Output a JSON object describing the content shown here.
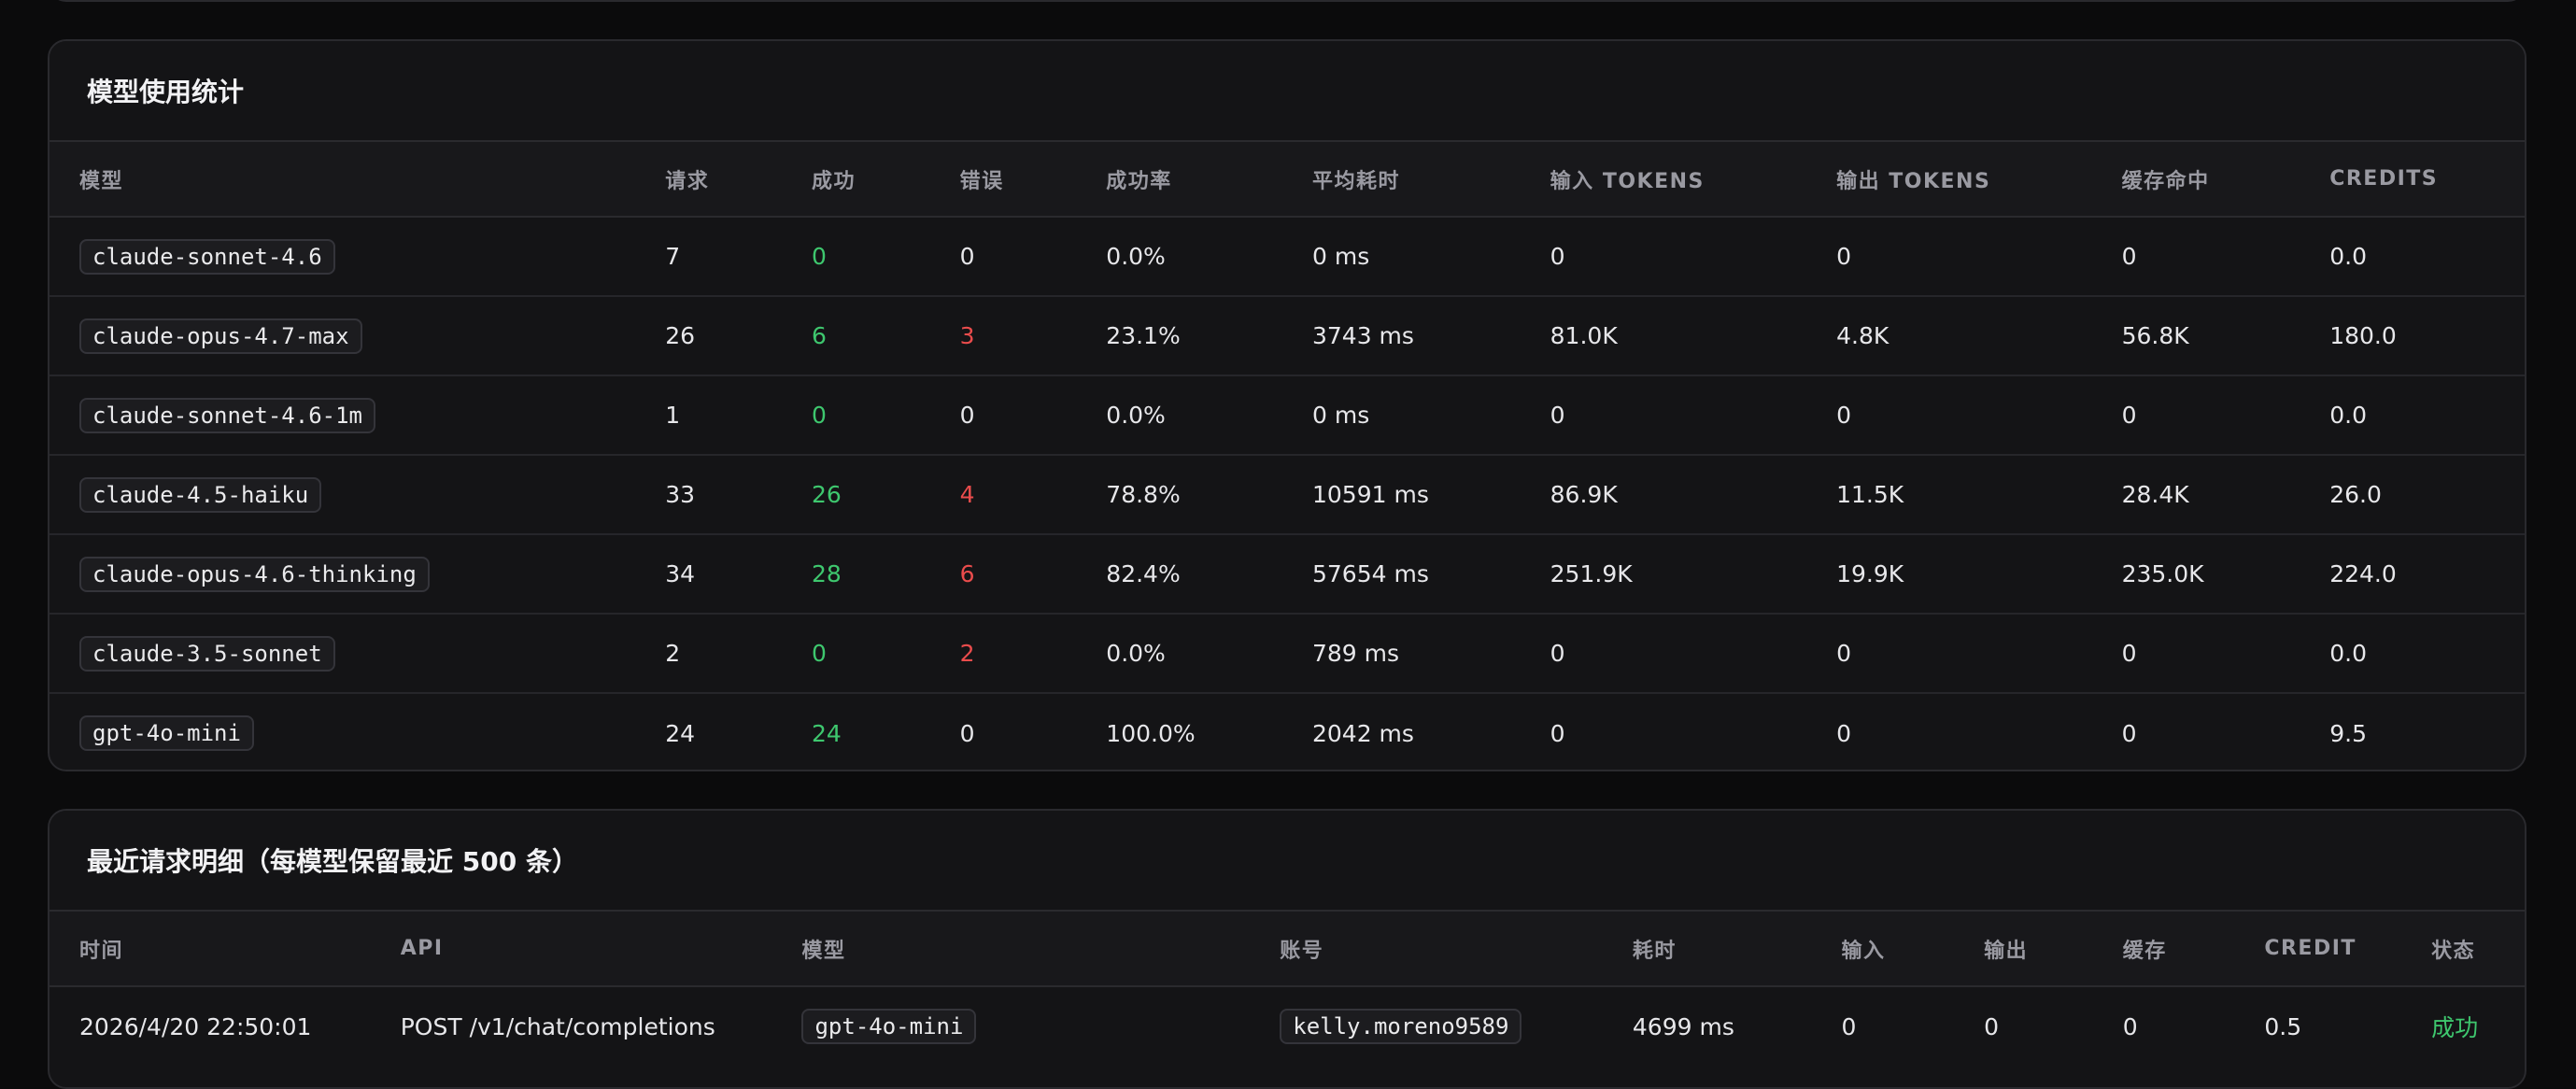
{
  "model_stats": {
    "title": "模型使用统计",
    "columns": [
      "模型",
      "请求",
      "成功",
      "错误",
      "成功率",
      "平均耗时",
      "输入 TOKENS",
      "输出 TOKENS",
      "缓存命中",
      "CREDITS"
    ],
    "rows": [
      {
        "model": "claude-sonnet-4.6",
        "requests": "7",
        "success": "0",
        "errors": "0",
        "success_rate": "0.0%",
        "avg_latency": "0 ms",
        "input_tokens": "0",
        "output_tokens": "0",
        "cache_hits": "0",
        "credits": "0.0"
      },
      {
        "model": "claude-opus-4.7-max",
        "requests": "26",
        "success": "6",
        "errors": "3",
        "success_rate": "23.1%",
        "avg_latency": "3743 ms",
        "input_tokens": "81.0K",
        "output_tokens": "4.8K",
        "cache_hits": "56.8K",
        "credits": "180.0"
      },
      {
        "model": "claude-sonnet-4.6-1m",
        "requests": "1",
        "success": "0",
        "errors": "0",
        "success_rate": "0.0%",
        "avg_latency": "0 ms",
        "input_tokens": "0",
        "output_tokens": "0",
        "cache_hits": "0",
        "credits": "0.0"
      },
      {
        "model": "claude-4.5-haiku",
        "requests": "33",
        "success": "26",
        "errors": "4",
        "success_rate": "78.8%",
        "avg_latency": "10591 ms",
        "input_tokens": "86.9K",
        "output_tokens": "11.5K",
        "cache_hits": "28.4K",
        "credits": "26.0"
      },
      {
        "model": "claude-opus-4.6-thinking",
        "requests": "34",
        "success": "28",
        "errors": "6",
        "success_rate": "82.4%",
        "avg_latency": "57654 ms",
        "input_tokens": "251.9K",
        "output_tokens": "19.9K",
        "cache_hits": "235.0K",
        "credits": "224.0"
      },
      {
        "model": "claude-3.5-sonnet",
        "requests": "2",
        "success": "0",
        "errors": "2",
        "success_rate": "0.0%",
        "avg_latency": "789 ms",
        "input_tokens": "0",
        "output_tokens": "0",
        "cache_hits": "0",
        "credits": "0.0"
      },
      {
        "model": "gpt-4o-mini",
        "requests": "24",
        "success": "24",
        "errors": "0",
        "success_rate": "100.0%",
        "avg_latency": "2042 ms",
        "input_tokens": "0",
        "output_tokens": "0",
        "cache_hits": "0",
        "credits": "9.5"
      }
    ]
  },
  "recent_requests": {
    "title": "最近请求明细（每模型保留最近 500 条）",
    "columns": [
      "时间",
      "API",
      "模型",
      "账号",
      "耗时",
      "输入",
      "输出",
      "缓存",
      "CREDIT",
      "状态"
    ],
    "rows": [
      {
        "time": "2026/4/20 22:50:01",
        "api": "POST /v1/chat/completions",
        "model": "gpt-4o-mini",
        "account": "kelly.moreno9589",
        "latency": "4699 ms",
        "input": "0",
        "output": "0",
        "cache": "0",
        "credit": "0.5",
        "status": "成功"
      }
    ]
  },
  "colors": {
    "success": "#3ec76e",
    "error": "#ea4c4c",
    "background": "#0b0b0c",
    "card": "#141416"
  }
}
